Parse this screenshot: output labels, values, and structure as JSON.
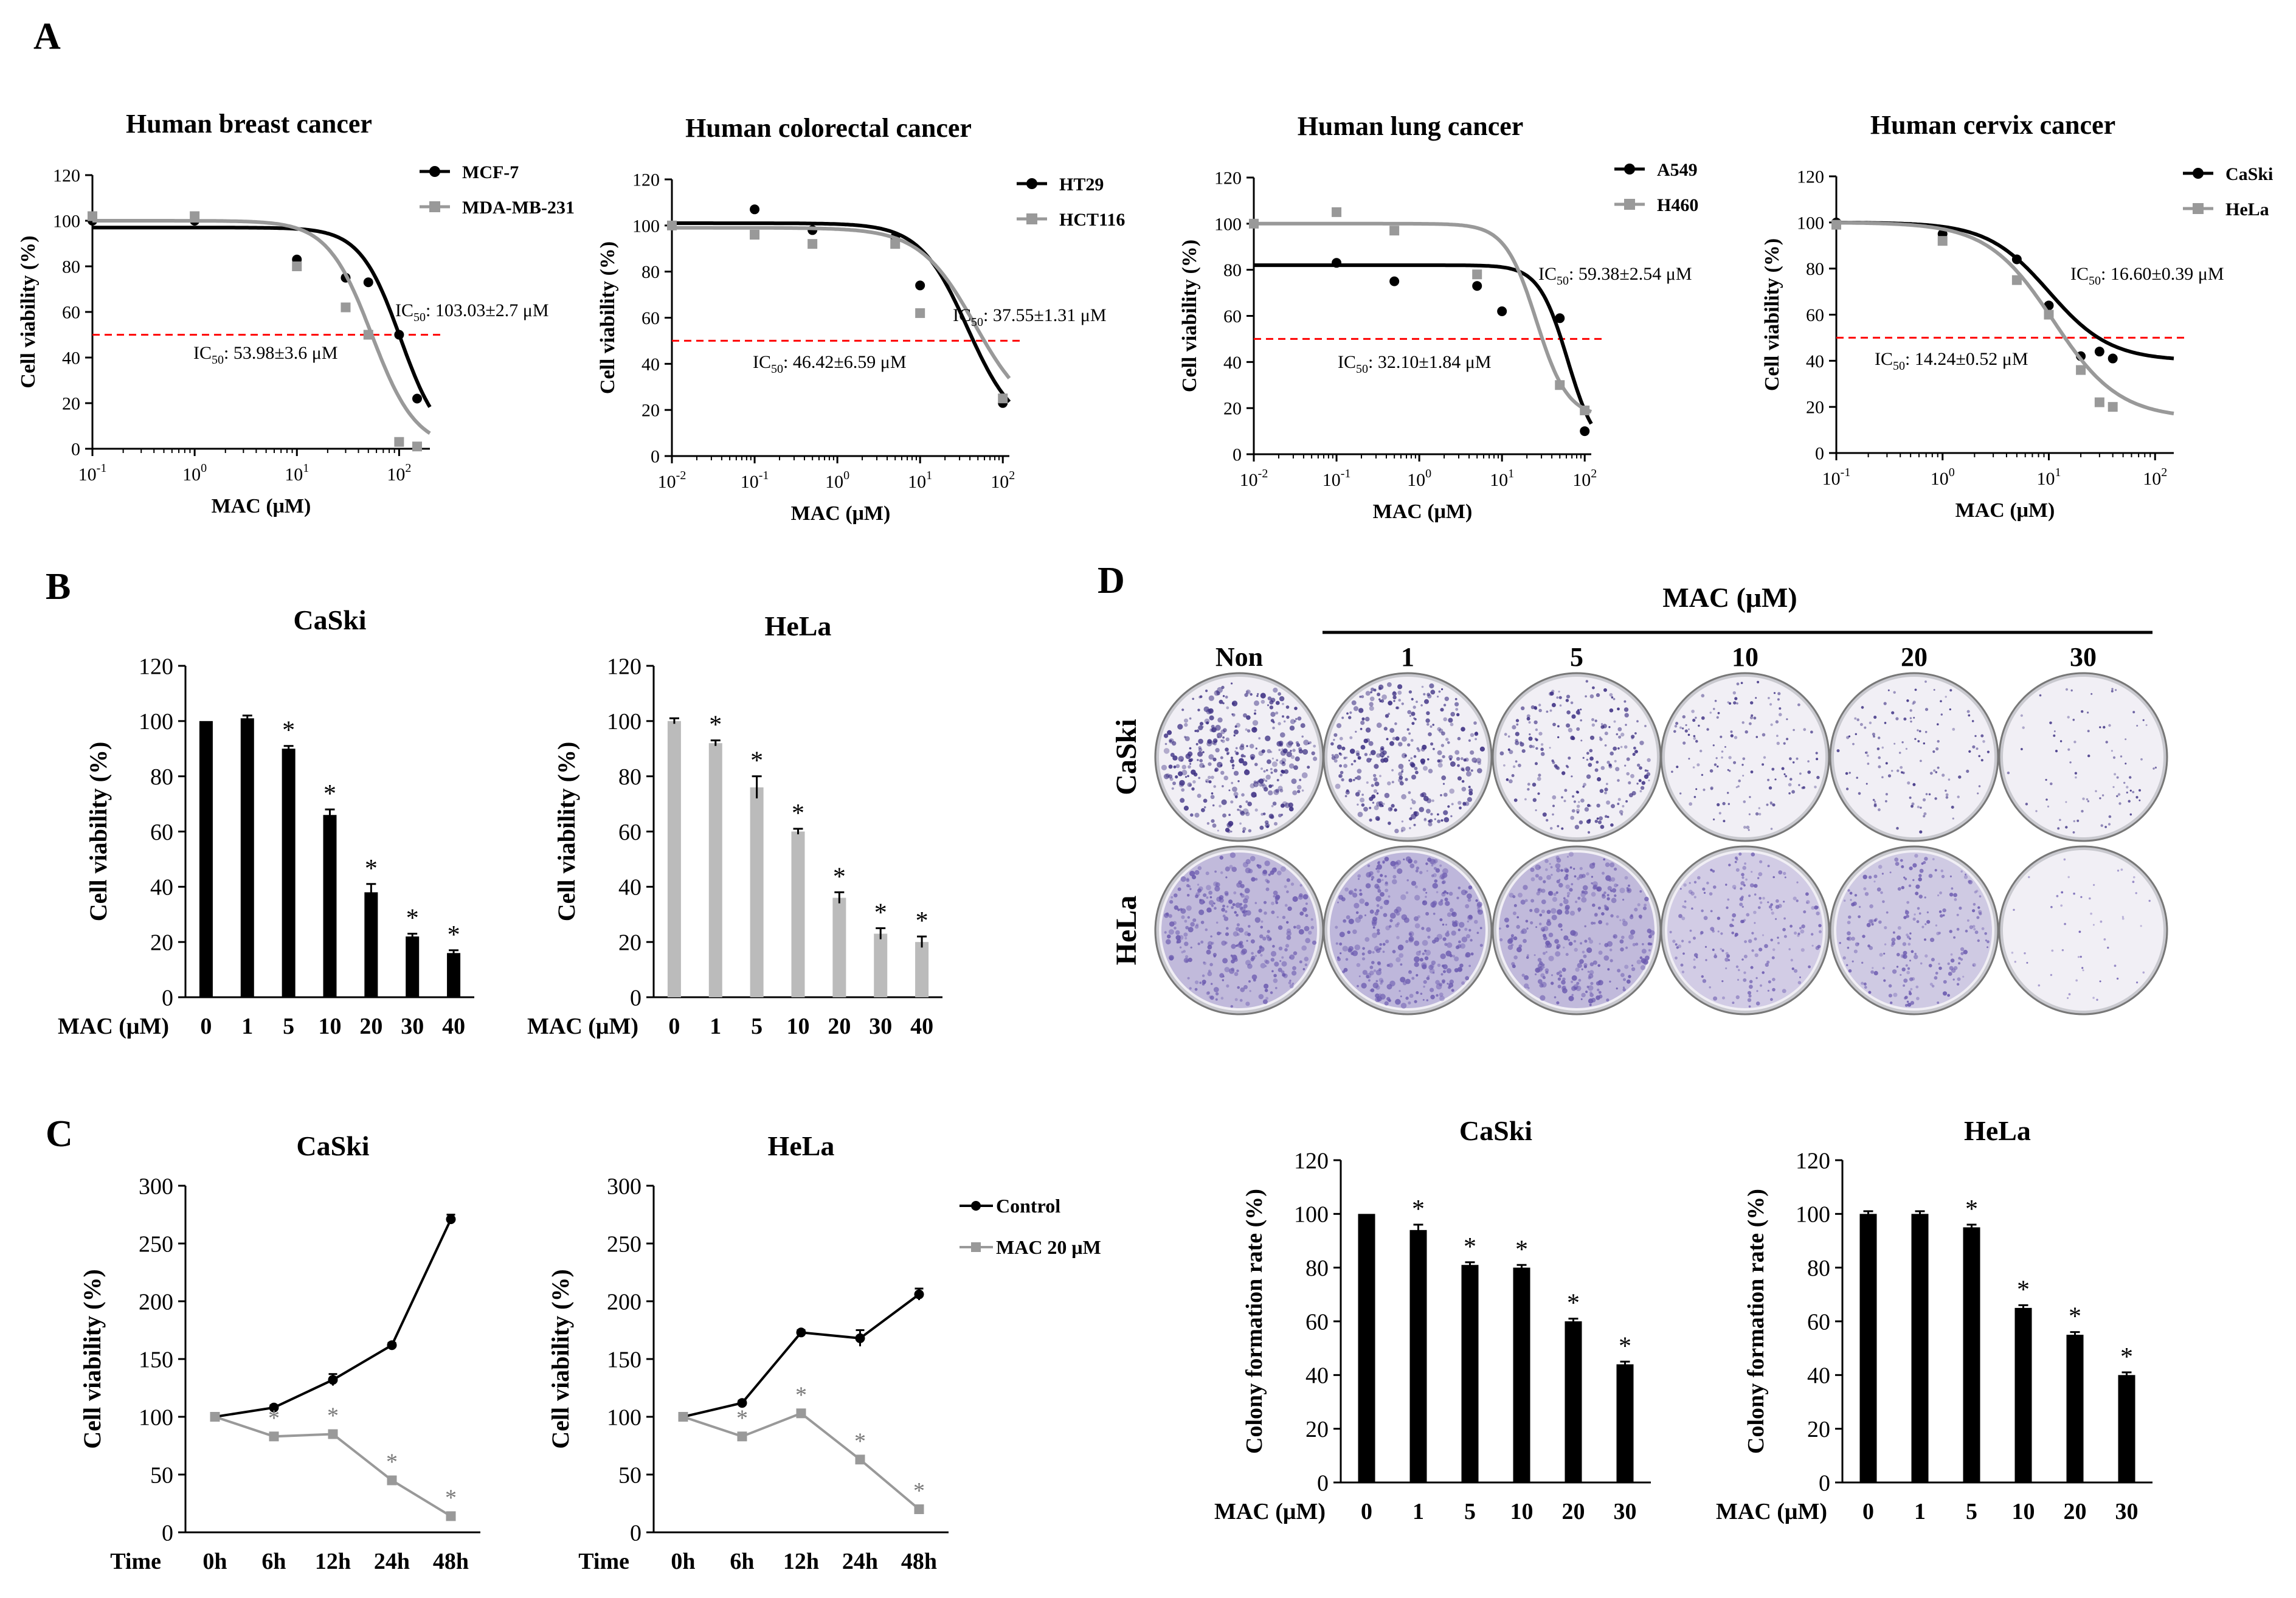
{
  "panel_labels": {
    "A": "A",
    "B": "B",
    "C": "C",
    "D": "D"
  },
  "chart_data": [
    {
      "id": "A1",
      "type": "scatter",
      "title": "Human breast cancer",
      "xlabel": "MAC (μM)",
      "ylabel": "Cell viability (%)",
      "xscale": "log",
      "xlim": [
        0.1,
        200
      ],
      "ylim": [
        0,
        120
      ],
      "xticks": [
        {
          "v": 0.1,
          "b": "10",
          "e": "-1"
        },
        {
          "v": 1,
          "b": "10",
          "e": "0"
        },
        {
          "v": 10,
          "b": "10",
          "e": "1"
        },
        {
          "v": 100,
          "b": "10",
          "e": "2"
        }
      ],
      "yticks": [
        0,
        20,
        40,
        60,
        80,
        100,
        120
      ],
      "threshold": 50,
      "series": [
        {
          "name": "MCF-7",
          "color": "#000000",
          "marker": "circle",
          "x": [
            0.1,
            1,
            10,
            30,
            50,
            100,
            150
          ],
          "y": [
            100,
            100,
            83,
            75,
            73,
            50,
            22
          ],
          "ic50": {
            "prefix": "IC",
            "sub": "50",
            "text": ": 103.03±2.7 μM"
          },
          "curve": {
            "top": 97,
            "bottom": 0,
            "ic50": 103,
            "h": 2.2
          }
        },
        {
          "name": "MDA-MB-231",
          "color": "#999999",
          "marker": "square",
          "x": [
            0.1,
            1,
            10,
            30,
            50,
            100,
            150
          ],
          "y": [
            102,
            102,
            80,
            62,
            50,
            3,
            1
          ],
          "ic50": {
            "prefix": "IC",
            "sub": "50",
            "text": ": 53.98±3.6 μM"
          },
          "curve": {
            "top": 100,
            "bottom": 0,
            "ic50": 54,
            "h": 2.0
          }
        }
      ]
    },
    {
      "id": "A2",
      "type": "scatter",
      "title": "Human colorectal cancer",
      "xlabel": "MAC (μM)",
      "ylabel": "Cell viability (%)",
      "xscale": "log",
      "xlim": [
        0.01,
        120
      ],
      "ylim": [
        0,
        120
      ],
      "xticks": [
        {
          "v": 0.01,
          "b": "10",
          "e": "-2"
        },
        {
          "v": 0.1,
          "b": "10",
          "e": "-1"
        },
        {
          "v": 1,
          "b": "10",
          "e": "0"
        },
        {
          "v": 10,
          "b": "10",
          "e": "1"
        },
        {
          "v": 100,
          "b": "10",
          "e": "2"
        }
      ],
      "yticks": [
        0,
        20,
        40,
        60,
        80,
        100,
        120
      ],
      "threshold": 50,
      "series": [
        {
          "name": "HT29",
          "color": "#000000",
          "marker": "circle",
          "x": [
            0.01,
            0.1,
            0.5,
            5,
            10,
            100
          ],
          "y": [
            100,
            107,
            98,
            95,
            74,
            23
          ],
          "ic50": {
            "prefix": "IC",
            "sub": "50",
            "text": ": 37.55±1.31 μM"
          },
          "curve": {
            "top": 101,
            "bottom": 10,
            "ic50": 37.5,
            "h": 1.5
          }
        },
        {
          "name": "HCT116",
          "color": "#999999",
          "marker": "square",
          "x": [
            0.01,
            0.1,
            0.5,
            5,
            10,
            100
          ],
          "y": [
            100,
            96,
            92,
            92,
            62,
            25
          ],
          "ic50": {
            "prefix": "IC",
            "sub": "50",
            "text": ": 46.42±6.59 μM"
          },
          "curve": {
            "top": 99,
            "bottom": 15,
            "ic50": 46,
            "h": 1.3
          }
        }
      ]
    },
    {
      "id": "A3",
      "type": "scatter",
      "title": "Human lung cancer",
      "xlabel": "MAC (μM)",
      "ylabel": "Cell viability (%)",
      "xscale": "log",
      "xlim": [
        0.01,
        120
      ],
      "ylim": [
        0,
        120
      ],
      "xticks": [
        {
          "v": 0.01,
          "b": "10",
          "e": "-2"
        },
        {
          "v": 0.1,
          "b": "10",
          "e": "-1"
        },
        {
          "v": 1,
          "b": "10",
          "e": "0"
        },
        {
          "v": 10,
          "b": "10",
          "e": "1"
        },
        {
          "v": 100,
          "b": "10",
          "e": "2"
        }
      ],
      "yticks": [
        0,
        20,
        40,
        60,
        80,
        100,
        120
      ],
      "threshold": 50,
      "series": [
        {
          "name": "A549",
          "color": "#000000",
          "marker": "circle",
          "x": [
            0.1,
            0.5,
            5,
            10,
            50,
            100
          ],
          "y": [
            83,
            75,
            73,
            62,
            59,
            10
          ],
          "ic50": {
            "prefix": "IC",
            "sub": "50",
            "text": ": 59.38±2.54 μM"
          },
          "curve": {
            "top": 82,
            "bottom": 0,
            "ic50": 62,
            "h": 2.5
          }
        },
        {
          "name": "H460",
          "color": "#999999",
          "marker": "square",
          "x": [
            0.01,
            0.1,
            0.5,
            5,
            50,
            100
          ],
          "y": [
            100,
            105,
            97,
            78,
            30,
            19
          ],
          "ic50": {
            "prefix": "IC",
            "sub": "50",
            "text": ": 32.10±1.84 μM"
          },
          "curve": {
            "top": 100,
            "bottom": 16,
            "ic50": 26,
            "h": 2.3
          }
        }
      ]
    },
    {
      "id": "A4",
      "type": "scatter",
      "title": "Human cervix cancer",
      "xlabel": "MAC (μM)",
      "ylabel": "Cell viability (%)",
      "xscale": "log",
      "xlim": [
        0.1,
        150
      ],
      "ylim": [
        0,
        120
      ],
      "xticks": [
        {
          "v": 0.1,
          "b": "10",
          "e": "-1"
        },
        {
          "v": 1,
          "b": "10",
          "e": "0"
        },
        {
          "v": 10,
          "b": "10",
          "e": "1"
        },
        {
          "v": 100,
          "b": "10",
          "e": "2"
        }
      ],
      "yticks": [
        0,
        20,
        40,
        60,
        80,
        100,
        120
      ],
      "threshold": 50,
      "series": [
        {
          "name": "CaSki",
          "color": "#000000",
          "marker": "circle",
          "x": [
            0.1,
            1,
            5,
            10,
            20,
            30,
            40
          ],
          "y": [
            100,
            95,
            84,
            64,
            42,
            44,
            41
          ],
          "ic50": {
            "prefix": "IC",
            "sub": "50",
            "text": ": 16.60±0.39 μM"
          },
          "curve": {
            "top": 100,
            "bottom": 40,
            "ic50": 10,
            "h": 1.5
          }
        },
        {
          "name": "HeLa",
          "color": "#999999",
          "marker": "square",
          "x": [
            0.1,
            1,
            5,
            10,
            20,
            30,
            40
          ],
          "y": [
            99,
            92,
            75,
            60,
            36,
            22,
            20
          ],
          "ic50": {
            "prefix": "IC",
            "sub": "50",
            "text": ": 14.24±0.52 μM"
          },
          "curve": {
            "top": 100,
            "bottom": 15,
            "ic50": 11,
            "h": 1.4
          }
        }
      ]
    },
    {
      "id": "B1",
      "type": "bar",
      "title": "CaSki",
      "xlabel": "MAC (μM)",
      "ylabel": "Cell viability  (%)",
      "categories": [
        "0",
        "1",
        "5",
        "10",
        "20",
        "30",
        "40"
      ],
      "values": [
        100,
        101,
        90,
        66,
        38,
        22,
        16
      ],
      "errors": [
        0,
        1,
        1,
        2,
        3,
        1,
        1
      ],
      "significant": [
        false,
        false,
        true,
        true,
        true,
        true,
        true
      ],
      "sig_mark": "*",
      "ylim": [
        0,
        120
      ],
      "yticks": [
        0,
        20,
        40,
        60,
        80,
        100,
        120
      ],
      "color": "#000000"
    },
    {
      "id": "B2",
      "type": "bar",
      "title": "HeLa",
      "xlabel": "MAC (μM)",
      "ylabel": "Cell viability  (%)",
      "categories": [
        "0",
        "1",
        "5",
        "10",
        "20",
        "30",
        "40"
      ],
      "values": [
        100,
        92,
        76,
        60,
        36,
        23,
        20
      ],
      "errors": [
        1,
        1,
        4,
        1,
        2,
        2,
        2
      ],
      "significant": [
        false,
        true,
        true,
        true,
        true,
        true,
        true
      ],
      "sig_mark": "*",
      "ylim": [
        0,
        120
      ],
      "yticks": [
        0,
        20,
        40,
        60,
        80,
        100,
        120
      ],
      "color": "#bbbbbb"
    },
    {
      "id": "C1",
      "type": "line",
      "title": "CaSki",
      "xlabel": "Time",
      "ylabel": "Cell viability  (%)",
      "categories": [
        "0h",
        "6h",
        "12h",
        "24h",
        "48h"
      ],
      "ylim": [
        0,
        300
      ],
      "yticks": [
        0,
        50,
        100,
        150,
        200,
        250,
        300
      ],
      "series": [
        {
          "name": "Control",
          "color": "#000000",
          "marker": "circle",
          "values": [
            100,
            108,
            132,
            162,
            271
          ],
          "errors": [
            0,
            2,
            5,
            2,
            4
          ]
        },
        {
          "name": "MAC 20 μM",
          "color": "#999999",
          "marker": "square",
          "values": [
            100,
            83,
            85,
            45,
            14
          ],
          "errors": [
            0,
            3,
            3,
            2,
            1
          ],
          "significant": [
            false,
            true,
            true,
            true,
            true
          ]
        }
      ],
      "sig_mark": "*"
    },
    {
      "id": "C2",
      "type": "line",
      "title": "HeLa",
      "xlabel": "Time",
      "ylabel": "Cell viability  (%)",
      "categories": [
        "0h",
        "6h",
        "12h",
        "24h",
        "48h"
      ],
      "ylim": [
        0,
        300
      ],
      "yticks": [
        0,
        50,
        100,
        150,
        200,
        250,
        300
      ],
      "series": [
        {
          "name": "Control",
          "color": "#000000",
          "marker": "circle",
          "values": [
            100,
            112,
            173,
            168,
            206
          ],
          "errors": [
            0,
            2,
            2,
            7,
            5
          ]
        },
        {
          "name": "MAC 20 μM",
          "color": "#999999",
          "marker": "square",
          "values": [
            100,
            83,
            103,
            63,
            20
          ],
          "errors": [
            0,
            3,
            3,
            3,
            2
          ],
          "significant": [
            false,
            true,
            true,
            true,
            true
          ]
        }
      ],
      "sig_mark": "*",
      "legend": [
        {
          "name": "Control",
          "color": "#000000",
          "marker": "circle"
        },
        {
          "name": "MAC 20 μM",
          "color": "#999999",
          "marker": "square"
        }
      ]
    },
    {
      "id": "D1",
      "type": "bar",
      "title": "CaSki",
      "xlabel": "MAC (μM)",
      "ylabel": "Colony formation rate (%)",
      "categories": [
        "0",
        "1",
        "5",
        "10",
        "20",
        "30"
      ],
      "values": [
        100,
        94,
        81,
        80,
        60,
        44
      ],
      "errors": [
        0,
        2,
        1,
        1,
        1,
        1
      ],
      "significant": [
        false,
        true,
        true,
        true,
        true,
        true
      ],
      "sig_mark": "*",
      "ylim": [
        0,
        120
      ],
      "yticks": [
        0,
        20,
        40,
        60,
        80,
        100,
        120
      ],
      "color": "#000000"
    },
    {
      "id": "D2",
      "type": "bar",
      "title": "HeLa",
      "xlabel": "MAC (μM)",
      "ylabel": "Colony formation rate (%)",
      "categories": [
        "0",
        "1",
        "5",
        "10",
        "20",
        "30"
      ],
      "values": [
        100,
        100,
        95,
        65,
        55,
        40
      ],
      "errors": [
        1,
        1,
        1,
        1,
        1,
        1
      ],
      "significant": [
        false,
        false,
        true,
        true,
        true,
        true
      ],
      "sig_mark": "*",
      "ylim": [
        0,
        120
      ],
      "yticks": [
        0,
        20,
        40,
        60,
        80,
        100,
        120
      ],
      "color": "#000000"
    }
  ],
  "plates": {
    "header": "MAC (μM)",
    "columns": [
      "Non",
      "1",
      "5",
      "10",
      "20",
      "30"
    ],
    "rows": [
      {
        "label": "CaSki",
        "stain": "#3b2e82",
        "density": [
          0.85,
          0.75,
          0.55,
          0.35,
          0.3,
          0.2
        ]
      },
      {
        "label": "HeLa",
        "stain": "#6c5bb0",
        "density": [
          0.8,
          0.85,
          0.8,
          0.5,
          0.55,
          0.12
        ]
      }
    ]
  }
}
